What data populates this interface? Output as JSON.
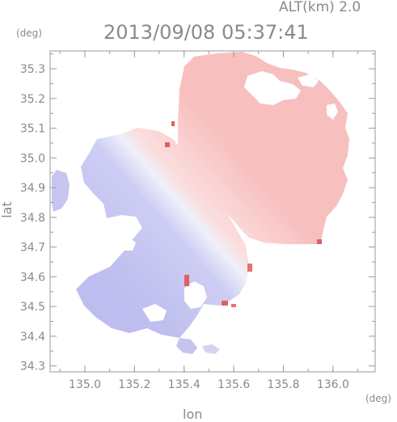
{
  "header": {
    "altitude": "ALT(km) 2.0",
    "timestamp": "2013/09/08 05:37:41",
    "unit_y": "(deg)",
    "unit_x": "(deg)"
  },
  "chart_data": {
    "type": "heatmap",
    "title": "2013/09/08 05:37:41",
    "xlabel": "lon",
    "ylabel": "lat",
    "xlim": [
      134.86,
      136.17
    ],
    "ylim": [
      34.28,
      35.36
    ],
    "xticks": [
      "135.0",
      "135.2",
      "135.4",
      "135.6",
      "135.8",
      "136.0"
    ],
    "xtick_values": [
      135.0,
      135.2,
      135.4,
      135.6,
      135.8,
      136.0
    ],
    "yticks": [
      "34.3",
      "34.4",
      "34.5",
      "34.6",
      "34.7",
      "34.8",
      "34.9",
      "35.0",
      "35.1",
      "35.2",
      "35.3"
    ],
    "ytick_values": [
      34.3,
      34.4,
      34.5,
      34.6,
      34.7,
      34.8,
      34.9,
      35.0,
      35.1,
      35.2,
      35.3
    ],
    "grid": false,
    "colors": {
      "approaching": "#c9c9f3",
      "approaching_dark": "#b8b8ec",
      "receding": "#f9c2c2",
      "receding_dark": "#f5a9a9",
      "near_zero": "#eeeef8",
      "hotspot": "#e06060"
    }
  }
}
